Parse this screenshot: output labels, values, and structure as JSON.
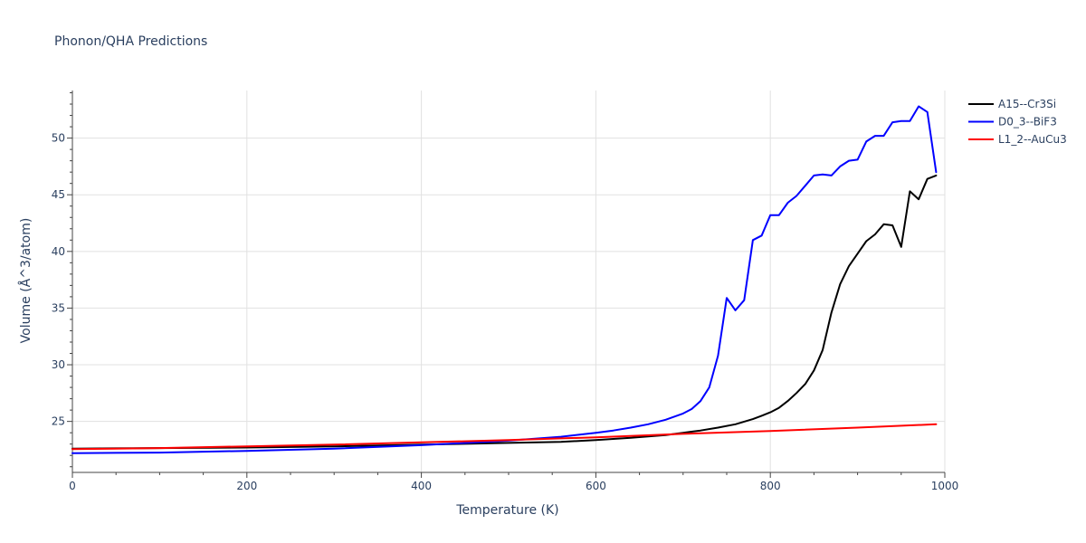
{
  "chart_data": {
    "type": "line",
    "title": "Phonon/QHA Predictions",
    "xlabel": "Temperature (K)",
    "ylabel": "Volume (Å^3/atom)",
    "xlim": [
      0,
      1000
    ],
    "ylim": [
      20.5,
      54.2
    ],
    "xticks": [
      0,
      200,
      400,
      600,
      800,
      1000
    ],
    "yticks": [
      25,
      30,
      35,
      40,
      45,
      50
    ],
    "grid": true,
    "legend_position": "top-right",
    "series": [
      {
        "name": "A15--Cr3Si",
        "color": "#000000",
        "x": [
          0,
          100,
          200,
          300,
          400,
          500,
          560,
          600,
          640,
          680,
          700,
          720,
          740,
          760,
          780,
          790,
          800,
          810,
          820,
          830,
          840,
          850,
          860,
          870,
          880,
          890,
          900,
          910,
          920,
          930,
          940,
          950,
          960,
          970,
          980,
          990
        ],
        "y": [
          22.6,
          22.65,
          22.7,
          22.8,
          22.95,
          23.1,
          23.2,
          23.35,
          23.55,
          23.8,
          24.0,
          24.2,
          24.45,
          24.75,
          25.2,
          25.5,
          25.8,
          26.2,
          26.8,
          27.5,
          28.3,
          29.5,
          31.3,
          34.6,
          37.1,
          38.7,
          39.8,
          40.9,
          41.5,
          42.4,
          42.3,
          40.4,
          45.3,
          44.6,
          46.4,
          46.7
        ]
      },
      {
        "name": "D0_3--BiF3",
        "color": "#0000ff",
        "x": [
          0,
          100,
          200,
          300,
          400,
          500,
          560,
          600,
          620,
          640,
          660,
          680,
          700,
          710,
          720,
          730,
          740,
          750,
          760,
          770,
          780,
          790,
          800,
          810,
          820,
          830,
          840,
          850,
          860,
          870,
          880,
          890,
          900,
          910,
          920,
          930,
          940,
          950,
          960,
          970,
          980,
          990
        ],
        "y": [
          22.2,
          22.25,
          22.4,
          22.6,
          22.9,
          23.3,
          23.65,
          24.0,
          24.2,
          24.45,
          24.75,
          25.15,
          25.7,
          26.1,
          26.8,
          28.0,
          30.8,
          35.9,
          34.8,
          35.7,
          41.0,
          41.4,
          43.2,
          43.2,
          44.3,
          44.9,
          45.8,
          46.7,
          46.8,
          46.7,
          47.5,
          48.0,
          48.1,
          49.7,
          50.2,
          50.2,
          51.4,
          51.5,
          51.5,
          52.8,
          52.3,
          47.0
        ]
      },
      {
        "name": "L1_2--AuCu3",
        "color": "#ff0000",
        "x": [
          0,
          100,
          200,
          300,
          400,
          500,
          600,
          700,
          800,
          900,
          990
        ],
        "y": [
          22.55,
          22.65,
          22.8,
          22.95,
          23.15,
          23.35,
          23.6,
          23.9,
          24.15,
          24.45,
          24.75
        ]
      }
    ]
  }
}
